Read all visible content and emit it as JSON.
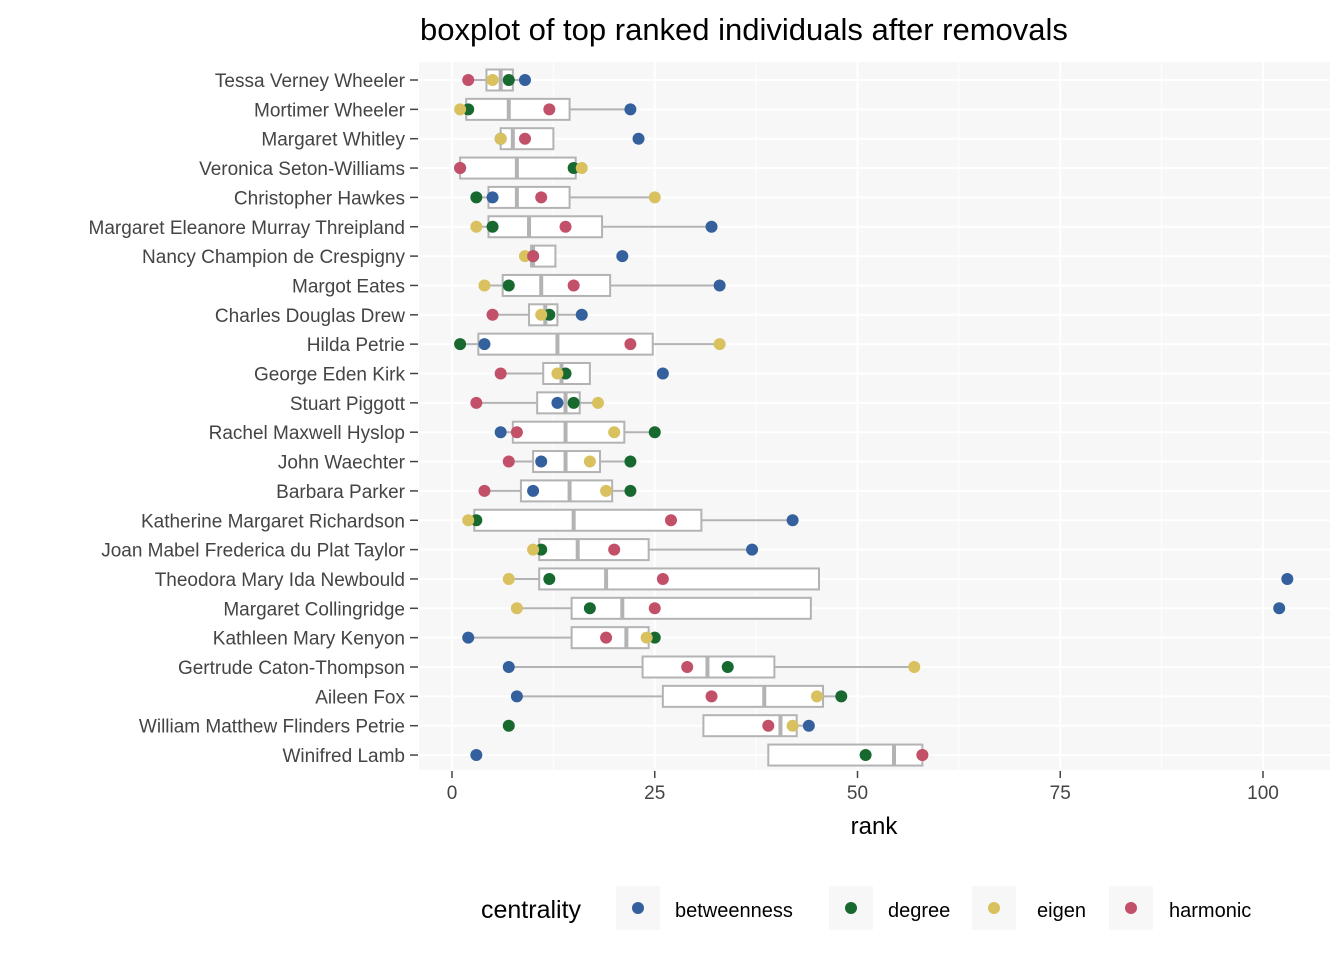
{
  "chart_data": {
    "type": "boxplot",
    "title": "boxplot of top ranked individuals after removals",
    "xlabel": "rank",
    "ylabel": "",
    "xlim": [
      -5,
      108
    ],
    "x_ticks": [
      0,
      25,
      50,
      75,
      100
    ],
    "grid": true,
    "legend": {
      "title": "centrality",
      "position": "bottom",
      "entries": [
        "betweenness",
        "degree",
        "eigen",
        "harmonic"
      ]
    },
    "colors": {
      "betweenness": "#34609d",
      "degree": "#17692f",
      "eigen": "#d9c15f",
      "harmonic": "#c25069",
      "box": "#b3b3b3",
      "panel": "#f7f7f7"
    },
    "individuals": [
      {
        "name": "Tessa Verney Wheeler",
        "betweenness": 9,
        "degree": 7,
        "eigen": 5,
        "harmonic": 2
      },
      {
        "name": "Mortimer Wheeler",
        "betweenness": 22,
        "degree": 2,
        "eigen": 1,
        "harmonic": 12
      },
      {
        "name": "Margaret Whitley",
        "betweenness": 23,
        "degree": 6,
        "eigen": 6,
        "harmonic": 9
      },
      {
        "name": "Veronica Seton-Williams",
        "betweenness": 1,
        "degree": 15,
        "eigen": 16,
        "harmonic": 1
      },
      {
        "name": "Christopher Hawkes",
        "betweenness": 5,
        "degree": 3,
        "eigen": 25,
        "harmonic": 11
      },
      {
        "name": "Margaret Eleanore Murray Threipland",
        "betweenness": 32,
        "degree": 5,
        "eigen": 3,
        "harmonic": 14
      },
      {
        "name": "Nancy Champion de Crespigny",
        "betweenness": 21,
        "degree": 10,
        "eigen": 9,
        "harmonic": 10
      },
      {
        "name": "Margot Eates",
        "betweenness": 33,
        "degree": 7,
        "eigen": 4,
        "harmonic": 15
      },
      {
        "name": "Charles Douglas Drew",
        "betweenness": 16,
        "degree": 12,
        "eigen": 11,
        "harmonic": 5
      },
      {
        "name": "Hilda Petrie",
        "betweenness": 4,
        "degree": 1,
        "eigen": 33,
        "harmonic": 22
      },
      {
        "name": "George Eden Kirk",
        "betweenness": 26,
        "degree": 14,
        "eigen": 13,
        "harmonic": 6
      },
      {
        "name": "Stuart Piggott",
        "betweenness": 13,
        "degree": 15,
        "eigen": 18,
        "harmonic": 3
      },
      {
        "name": "Rachel Maxwell Hyslop",
        "betweenness": 6,
        "degree": 25,
        "eigen": 20,
        "harmonic": 8
      },
      {
        "name": "John Waechter",
        "betweenness": 11,
        "degree": 22,
        "eigen": 17,
        "harmonic": 7
      },
      {
        "name": "Barbara Parker",
        "betweenness": 10,
        "degree": 22,
        "eigen": 19,
        "harmonic": 4
      },
      {
        "name": "Katherine Margaret Richardson",
        "betweenness": 42,
        "degree": 3,
        "eigen": 2,
        "harmonic": 27
      },
      {
        "name": "Joan Mabel Frederica du Plat Taylor",
        "betweenness": 37,
        "degree": 11,
        "eigen": 10,
        "harmonic": 20
      },
      {
        "name": "Theodora Mary Ida Newbould",
        "betweenness": 103,
        "degree": 12,
        "eigen": 7,
        "harmonic": 26
      },
      {
        "name": "Margaret Collingridge",
        "betweenness": 102,
        "degree": 17,
        "eigen": 8,
        "harmonic": 25
      },
      {
        "name": "Kathleen Mary Kenyon",
        "betweenness": 2,
        "degree": 25,
        "eigen": 24,
        "harmonic": 19
      },
      {
        "name": "Gertrude Caton-Thompson",
        "betweenness": 7,
        "degree": 34,
        "eigen": 57,
        "harmonic": 29
      },
      {
        "name": "Aileen Fox",
        "betweenness": 8,
        "degree": 48,
        "eigen": 45,
        "harmonic": 32
      },
      {
        "name": "William Matthew Flinders Petrie",
        "betweenness": 44,
        "degree": 7,
        "eigen": 42,
        "harmonic": 39
      },
      {
        "name": "Winifred Lamb",
        "betweenness": 3,
        "degree": 51,
        "eigen": 58,
        "harmonic": 58
      }
    ]
  }
}
